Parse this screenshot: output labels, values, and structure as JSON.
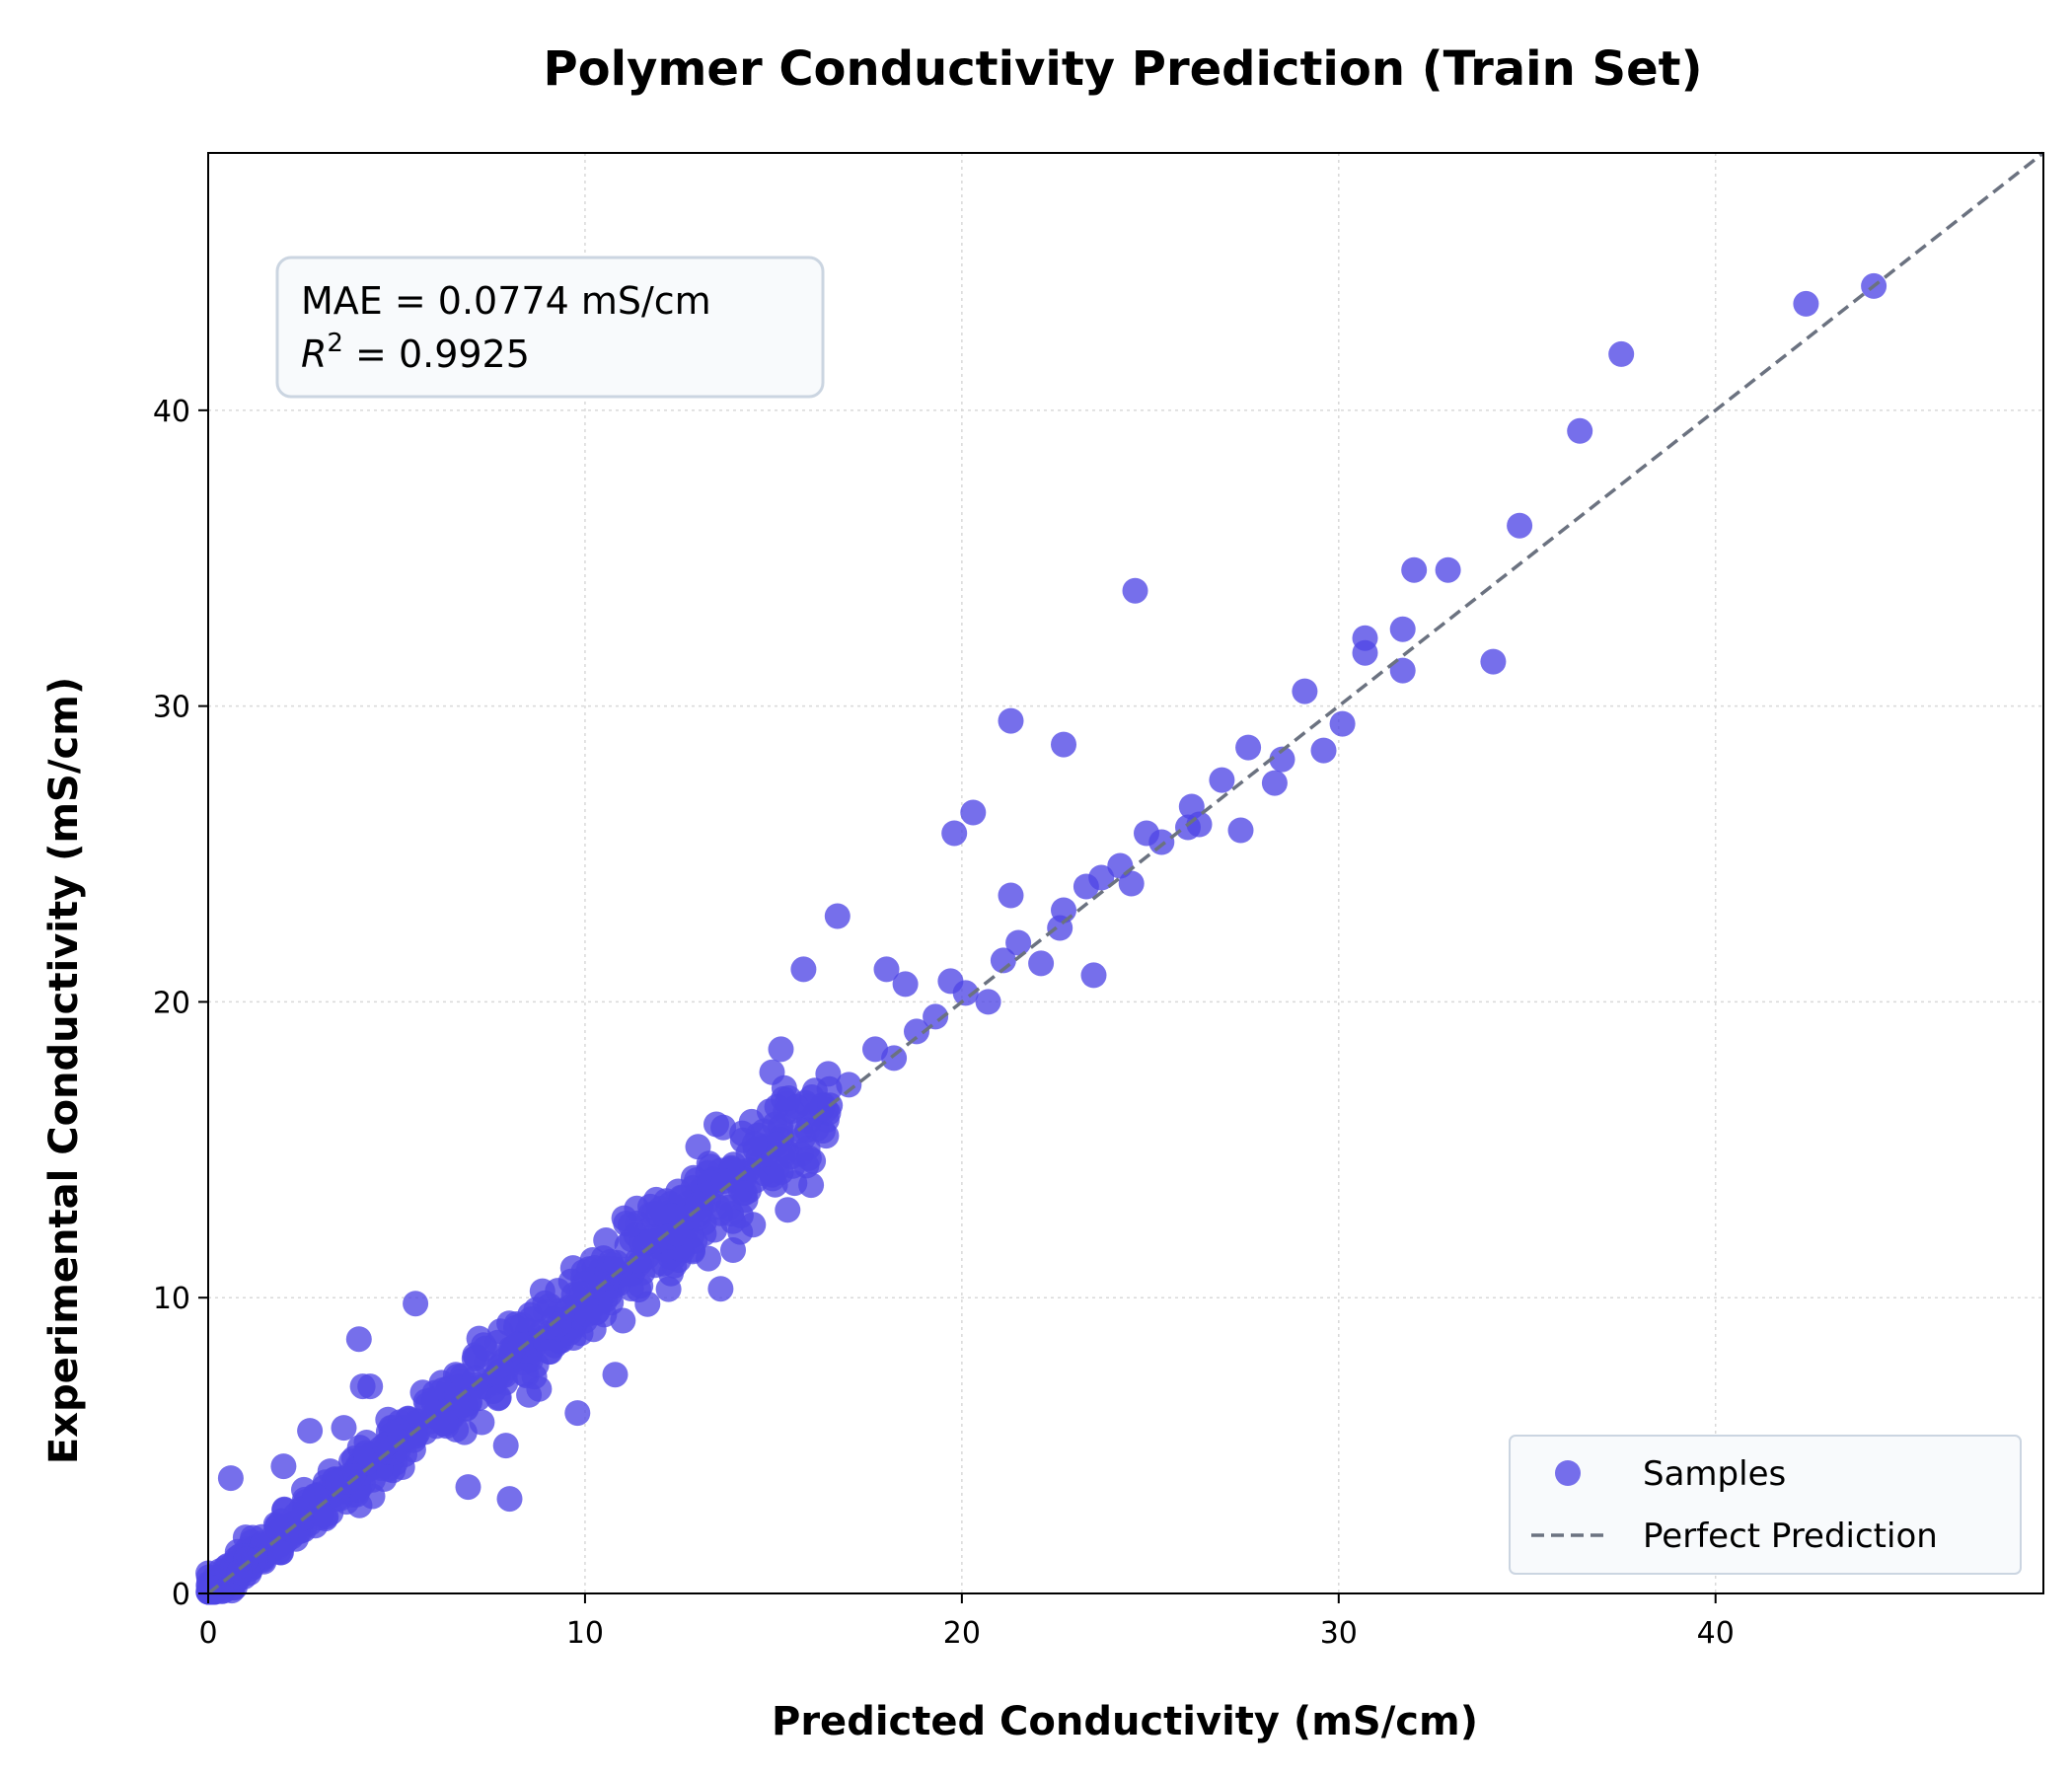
{
  "chart_data": {
    "type": "scatter",
    "title": "Polymer Conductivity Prediction (Train Set)",
    "xlabel": "Predicted Conductivity (mS/cm)",
    "ylabel": "Experimental Conductivity (mS/cm)",
    "xlim": [
      0,
      48.7
    ],
    "ylim": [
      0,
      48.7
    ],
    "xticks": [
      0,
      10,
      20,
      30,
      40
    ],
    "yticks": [
      0,
      10,
      20,
      30,
      40
    ],
    "grid": true,
    "legend_position": "lower-right",
    "stats": {
      "mae_text": "MAE = 0.0774 mS/cm",
      "r2_symbol": "R",
      "r2_exponent": "2",
      "r2_value": " = 0.9925"
    },
    "series": [
      {
        "name": "Samples",
        "kind": "scatter",
        "color": "#4f46e5",
        "outliers": [
          [
            0.6,
            3.9
          ],
          [
            2.0,
            4.3
          ],
          [
            2.7,
            5.5
          ],
          [
            3.6,
            5.6
          ],
          [
            4.0,
            8.6
          ],
          [
            4.1,
            7.0
          ],
          [
            4.3,
            7.0
          ],
          [
            5.5,
            9.8
          ],
          [
            8.0,
            3.2
          ],
          [
            7.9,
            5.0
          ],
          [
            6.9,
            3.6
          ],
          [
            9.8,
            6.1
          ],
          [
            10.8,
            7.4
          ],
          [
            13.6,
            10.3
          ],
          [
            13.0,
            15.1
          ],
          [
            15.2,
            18.4
          ],
          [
            15.8,
            21.1
          ],
          [
            16.7,
            22.9
          ],
          [
            18.0,
            21.1
          ],
          [
            18.5,
            20.6
          ],
          [
            19.8,
            25.7
          ],
          [
            20.3,
            26.4
          ],
          [
            21.3,
            29.5
          ],
          [
            21.3,
            23.6
          ],
          [
            22.7,
            28.7
          ],
          [
            23.5,
            20.9
          ],
          [
            24.6,
            33.9
          ],
          [
            27.6,
            28.6
          ],
          [
            29.1,
            30.5
          ],
          [
            29.6,
            28.5
          ],
          [
            30.7,
            32.3
          ],
          [
            30.7,
            31.8
          ],
          [
            31.7,
            32.6
          ],
          [
            31.7,
            31.2
          ],
          [
            32.0,
            34.6
          ],
          [
            32.9,
            34.6
          ],
          [
            34.1,
            31.5
          ],
          [
            34.8,
            36.1
          ],
          [
            36.4,
            39.3
          ],
          [
            37.5,
            41.9
          ],
          [
            42.4,
            43.6
          ],
          [
            44.2,
            44.2
          ]
        ],
        "near_line": [
          [
            16.1,
            17.0
          ],
          [
            16.5,
            16.5
          ],
          [
            17.0,
            17.2
          ],
          [
            17.7,
            18.4
          ],
          [
            18.2,
            18.1
          ],
          [
            18.8,
            19.0
          ],
          [
            19.3,
            19.5
          ],
          [
            19.7,
            20.7
          ],
          [
            20.1,
            20.3
          ],
          [
            20.7,
            20.0
          ],
          [
            21.1,
            21.4
          ],
          [
            21.5,
            22.0
          ],
          [
            22.1,
            21.3
          ],
          [
            22.6,
            22.5
          ],
          [
            22.7,
            23.1
          ],
          [
            23.3,
            23.9
          ],
          [
            23.7,
            24.2
          ],
          [
            24.2,
            24.6
          ],
          [
            24.5,
            24.0
          ],
          [
            24.9,
            25.7
          ],
          [
            25.3,
            25.4
          ],
          [
            26.0,
            25.9
          ],
          [
            26.1,
            26.6
          ],
          [
            26.3,
            26.0
          ],
          [
            26.9,
            27.5
          ],
          [
            27.4,
            25.8
          ],
          [
            28.3,
            27.4
          ],
          [
            28.5,
            28.2
          ],
          [
            30.1,
            29.4
          ]
        ]
      },
      {
        "name": "Perfect Prediction",
        "kind": "line",
        "color": "#6b7280",
        "x": [
          0,
          48.7
        ],
        "y": [
          0,
          48.7
        ]
      }
    ]
  }
}
